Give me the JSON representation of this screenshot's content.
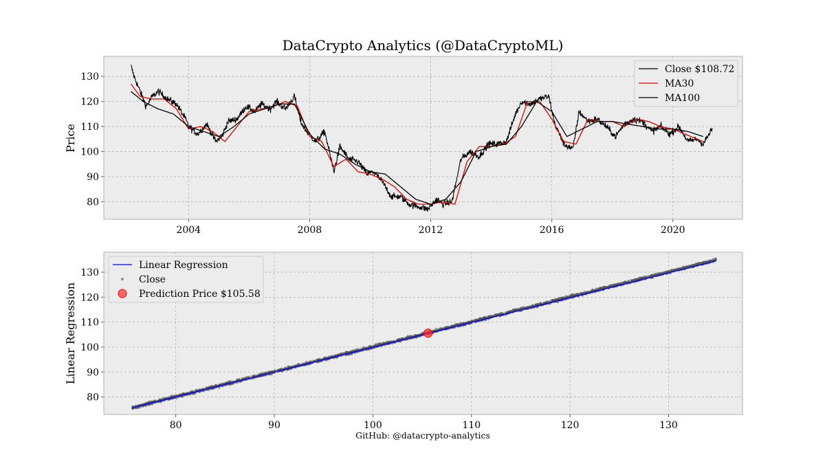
{
  "chart_data": [
    {
      "type": "line",
      "title": "DataCrypto Analytics (@DataCryptoML)",
      "ylabel": "Price",
      "xlabel": "",
      "xlim": [
        2001.2,
        2022.3
      ],
      "ylim": [
        73,
        138
      ],
      "xticks": [
        2004,
        2008,
        2012,
        2016,
        2020
      ],
      "xtick_labels": [
        "2004",
        "2008",
        "2012",
        "2016",
        "2020"
      ],
      "yticks": [
        80,
        90,
        100,
        110,
        120,
        130
      ],
      "yticks_labels": [
        "80",
        "90",
        "100",
        "110",
        "120",
        "130"
      ],
      "grid": true,
      "legend_position": "top-right",
      "series": [
        {
          "name": "Close $108.72",
          "color": "#000000",
          "x": [
            2002.1,
            2002.2,
            2002.4,
            2002.6,
            2002.8,
            2003.0,
            2003.3,
            2003.6,
            2003.9,
            2004.0,
            2004.3,
            2004.6,
            2004.9,
            2005.1,
            2005.3,
            2005.6,
            2005.9,
            2006.2,
            2006.4,
            2006.7,
            2006.9,
            2007.2,
            2007.5,
            2007.7,
            2007.9,
            2008.2,
            2008.5,
            2008.8,
            2009.0,
            2009.3,
            2009.6,
            2009.9,
            2010.1,
            2010.4,
            2010.7,
            2011.0,
            2011.3,
            2011.6,
            2011.9,
            2012.2,
            2012.4,
            2012.7,
            2013.0,
            2013.3,
            2013.6,
            2013.9,
            2014.2,
            2014.5,
            2014.8,
            2015.0,
            2015.3,
            2015.6,
            2015.9,
            2016.1,
            2016.4,
            2016.7,
            2016.9,
            2017.2,
            2017.5,
            2017.8,
            2018.1,
            2018.4,
            2018.7,
            2019.0,
            2019.3,
            2019.6,
            2019.9,
            2020.2,
            2020.5,
            2020.8,
            2021.0,
            2021.3
          ],
          "values": [
            134,
            130,
            124,
            118,
            122,
            124,
            121,
            119,
            113,
            110,
            107,
            111,
            104,
            106,
            112,
            113,
            118,
            116,
            119,
            117,
            120,
            117,
            122,
            112,
            108,
            104,
            108,
            92,
            102,
            97,
            96,
            91,
            92,
            88,
            82,
            82,
            79,
            78,
            77,
            81,
            79,
            80,
            97,
            100,
            98,
            103,
            103,
            104,
            115,
            120,
            119,
            121,
            122,
            111,
            103,
            101,
            116,
            112,
            113,
            110,
            106,
            111,
            113,
            112,
            108,
            110,
            107,
            110,
            104,
            105,
            103,
            109
          ]
        },
        {
          "name": "MA30",
          "color": "#dd0000",
          "x": [
            2002.1,
            2002.4,
            2002.8,
            2003.2,
            2003.6,
            2004.0,
            2004.4,
            2004.8,
            2005.2,
            2005.6,
            2006.0,
            2006.4,
            2006.8,
            2007.2,
            2007.6,
            2008.0,
            2008.4,
            2008.8,
            2009.2,
            2009.6,
            2010.0,
            2010.4,
            2010.8,
            2011.2,
            2011.6,
            2012.0,
            2012.4,
            2012.8,
            2013.2,
            2013.6,
            2014.0,
            2014.4,
            2014.8,
            2015.2,
            2015.6,
            2016.0,
            2016.4,
            2016.8,
            2017.2,
            2017.6,
            2018.0,
            2018.4,
            2018.8,
            2019.2,
            2019.6,
            2020.0,
            2020.4,
            2020.8,
            2021.0
          ],
          "values": [
            127,
            122,
            121,
            121,
            117,
            109,
            110,
            108,
            104,
            110,
            116,
            117,
            118,
            120,
            118,
            106,
            104,
            94,
            97,
            92,
            91,
            89,
            86,
            81,
            79,
            79,
            80,
            79,
            96,
            102,
            102,
            103,
            106,
            120,
            120,
            113,
            104,
            103,
            113,
            112,
            112,
            110,
            113,
            112,
            110,
            109,
            107,
            105,
            104
          ]
        },
        {
          "name": "MA100",
          "color": "#000000",
          "x": [
            2002.1,
            2002.5,
            2003.0,
            2003.5,
            2004.0,
            2004.5,
            2005.0,
            2005.5,
            2006.0,
            2006.5,
            2007.0,
            2007.5,
            2008.0,
            2008.5,
            2009.0,
            2009.5,
            2010.0,
            2010.5,
            2011.0,
            2011.5,
            2012.0,
            2012.5,
            2013.0,
            2013.5,
            2014.0,
            2014.5,
            2015.0,
            2015.5,
            2016.0,
            2016.5,
            2017.0,
            2017.5,
            2018.0,
            2018.5,
            2019.0,
            2019.5,
            2020.0,
            2020.5,
            2021.0
          ],
          "values": [
            124,
            120,
            117,
            115,
            110,
            108,
            106,
            110,
            115,
            117,
            119,
            119,
            107,
            101,
            99,
            95,
            92,
            91,
            86,
            81,
            79,
            81,
            88,
            100,
            102,
            103,
            110,
            120,
            116,
            106,
            109,
            112,
            112,
            111,
            110,
            109,
            109,
            108,
            106
          ]
        }
      ]
    },
    {
      "type": "scatter",
      "ylabel": "Linear Regression",
      "xlabel": "",
      "xlim": [
        72.7,
        137.5
      ],
      "ylim": [
        73,
        138
      ],
      "xticks": [
        80,
        90,
        100,
        110,
        120,
        130
      ],
      "xtick_labels": [
        "80",
        "90",
        "100",
        "110",
        "120",
        "130"
      ],
      "yticks": [
        80,
        90,
        100,
        110,
        120,
        130
      ],
      "ytick_labels": [
        "80",
        "90",
        "100",
        "110",
        "120",
        "130"
      ],
      "grid": true,
      "legend_position": "top-left",
      "series": [
        {
          "name": "Linear Regression",
          "color": "#0000ff",
          "x": [
            75.6,
            134.8
          ],
          "y": [
            75.7,
            134.5
          ]
        },
        {
          "name": "Close",
          "color": "#555555",
          "x_range": [
            75.6,
            134.8
          ]
        },
        {
          "name": "Prediction Price $105.58",
          "color": "#ff3030",
          "x": [
            105.6
          ],
          "y": [
            105.6
          ]
        }
      ]
    }
  ],
  "footer": "GitHub: @datacrypto-analytics"
}
